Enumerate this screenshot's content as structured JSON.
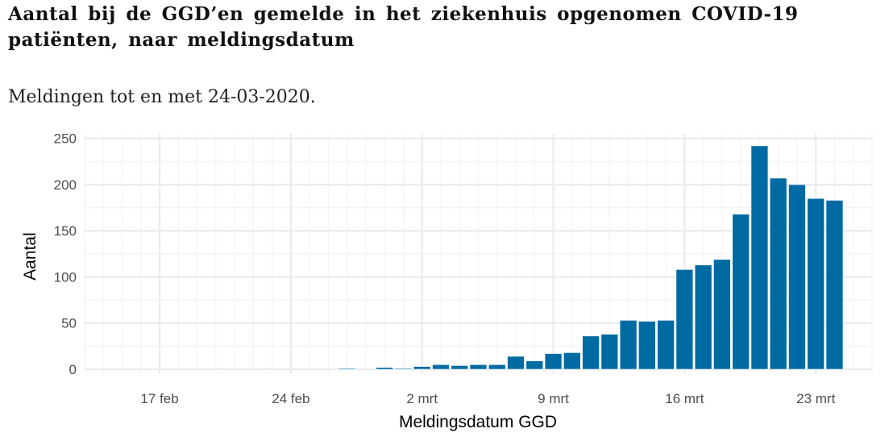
{
  "title": "Aantal bij de GGD’en gemelde in het ziekenhuis opgenomen COVID-19 patiënten, naar meldingsdatum",
  "subtitle": "Meldingen tot en met 24-03-2020.",
  "colors": {
    "bar": "#006ba3",
    "grid_major": "#ebebeb",
    "grid_minor": "#f4f4f4"
  },
  "chart_data": {
    "type": "bar",
    "xlabel": "Meldingsdatum GGD",
    "ylabel": "Aantal",
    "ylim": [
      0,
      255
    ],
    "y_ticks": [
      0,
      50,
      100,
      150,
      200,
      250
    ],
    "x_tick_labels": [
      {
        "label": "17 feb",
        "date": "2020-02-17"
      },
      {
        "label": "24 feb",
        "date": "2020-02-24"
      },
      {
        "label": "2 mrt",
        "date": "2020-03-02"
      },
      {
        "label": "9 mrt",
        "date": "2020-03-09"
      },
      {
        "label": "16 mrt",
        "date": "2020-03-16"
      },
      {
        "label": "23 mrt",
        "date": "2020-03-23"
      }
    ],
    "x_range": [
      "2020-02-13",
      "2020-03-26"
    ],
    "categories": [
      "2020-02-27",
      "2020-02-28",
      "2020-02-29",
      "2020-03-01",
      "2020-03-02",
      "2020-03-03",
      "2020-03-04",
      "2020-03-05",
      "2020-03-06",
      "2020-03-07",
      "2020-03-08",
      "2020-03-09",
      "2020-03-10",
      "2020-03-11",
      "2020-03-12",
      "2020-03-13",
      "2020-03-14",
      "2020-03-15",
      "2020-03-16",
      "2020-03-17",
      "2020-03-18",
      "2020-03-19",
      "2020-03-20",
      "2020-03-21",
      "2020-03-22",
      "2020-03-23",
      "2020-03-24"
    ],
    "values": [
      1,
      0,
      2,
      1,
      3,
      5,
      4,
      5,
      5,
      14,
      9,
      17,
      18,
      36,
      38,
      53,
      52,
      53,
      108,
      113,
      119,
      168,
      242,
      207,
      200,
      185,
      183
    ]
  }
}
